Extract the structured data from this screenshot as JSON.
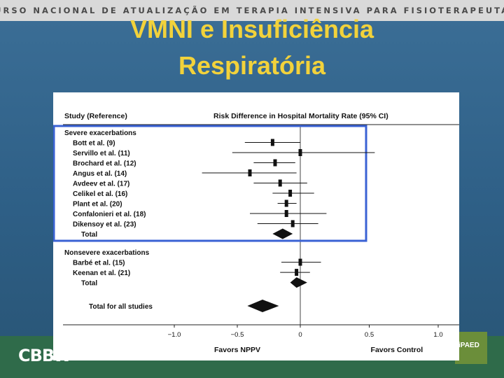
{
  "header": {
    "course_title": "CURSO NACIONAL DE ATUALIZAÇÃO EM TERAPIA INTENSIVA PARA FISIOTERAPEUTAS"
  },
  "slide": {
    "title_line1": "VMNI e Insuficiência",
    "title_line2": "Respiratória"
  },
  "footer": {
    "left_logo": "CBBW",
    "right_logo": "iPAED"
  },
  "colors": {
    "title": "#f2d23b",
    "highlight": "#3a62d4"
  },
  "chart_data": {
    "type": "forest",
    "header_left": "Study (Reference)",
    "header_right": "Risk Difference in Hospital Mortality Rate (95% CI)",
    "xlim": [
      -1.0,
      1.0
    ],
    "xticks": [
      "−1.0",
      "−0.5",
      "0",
      "0.5",
      "1.0"
    ],
    "xtick_values": [
      -1.0,
      -0.5,
      0,
      0.5,
      1.0
    ],
    "x_left_label": "Favors NPPV",
    "x_right_label": "Favors Control",
    "groups": [
      {
        "name": "Severe exacerbations",
        "highlighted": true,
        "studies": [
          {
            "label": "Bott et al. (9)",
            "est": -0.22,
            "lo": -0.44,
            "hi": 0.0
          },
          {
            "label": "Servillo et al. (11)",
            "est": 0.0,
            "lo": -0.54,
            "hi": 0.54
          },
          {
            "label": "Brochard et al. (12)",
            "est": -0.2,
            "lo": -0.37,
            "hi": -0.04
          },
          {
            "label": "Angus et al. (14)",
            "est": -0.4,
            "lo": -0.78,
            "hi": -0.03
          },
          {
            "label": "Avdeev et al. (17)",
            "est": -0.16,
            "lo": -0.37,
            "hi": 0.05
          },
          {
            "label": "Celikel et al. (16)",
            "est": -0.08,
            "lo": -0.22,
            "hi": 0.1
          },
          {
            "label": "Plant et al. (20)",
            "est": -0.11,
            "lo": -0.18,
            "hi": -0.03
          },
          {
            "label": "Confalonieri et al. (18)",
            "est": -0.11,
            "lo": -0.4,
            "hi": 0.19
          },
          {
            "label": "Dikensoy et al. (23)",
            "est": -0.06,
            "lo": -0.34,
            "hi": 0.13
          }
        ],
        "total": {
          "label": "Total",
          "est": -0.14,
          "lo": -0.22,
          "hi": -0.06
        }
      },
      {
        "name": "Nonsevere exacerbations",
        "highlighted": false,
        "studies": [
          {
            "label": "Barbé et al. (15)",
            "est": 0.0,
            "lo": -0.15,
            "hi": 0.15
          },
          {
            "label": "Keenan et al. (21)",
            "est": -0.03,
            "lo": -0.16,
            "hi": 0.07
          }
        ],
        "total": {
          "label": "Total",
          "est": -0.03,
          "lo": -0.08,
          "hi": 0.05
        }
      }
    ],
    "overall": {
      "label": "Total for all studies",
      "est": -0.3,
      "lo": -0.42,
      "hi": -0.17
    }
  }
}
